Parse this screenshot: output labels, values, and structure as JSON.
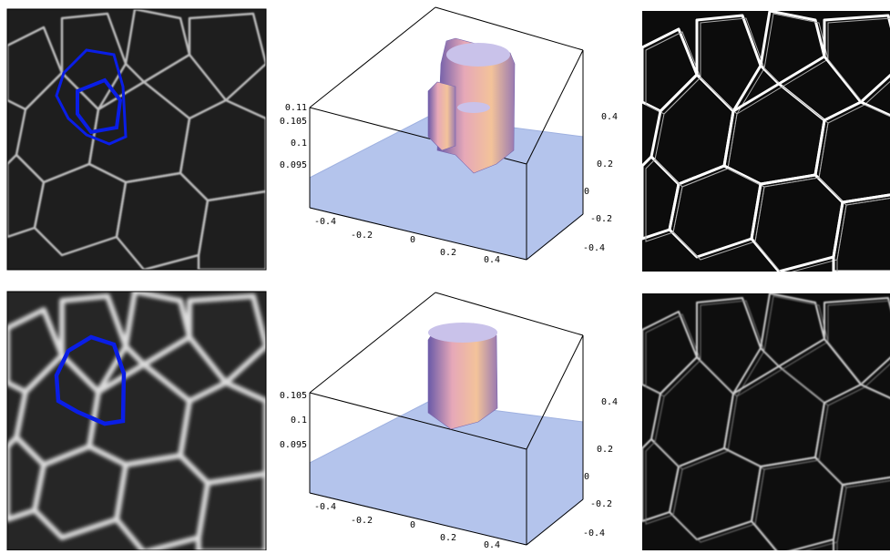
{
  "rows": [
    {
      "surface": {
        "z_ticks": [
          "0.11",
          "0.105",
          "0.1",
          "0.095"
        ],
        "x_ticks": [
          "-0.4",
          "-0.2",
          "0",
          "0.2",
          "0.4"
        ],
        "y_ticks": [
          "0.4",
          "0.2",
          "0",
          "-0.2",
          "-0.4"
        ]
      }
    },
    {
      "surface": {
        "z_ticks": [
          "0.105",
          "0.1",
          "0.095"
        ],
        "x_ticks": [
          "-0.4",
          "-0.2",
          "0",
          "0.2",
          "0.4"
        ],
        "y_ticks": [
          "0.4",
          "0.2",
          "0",
          "-0.2",
          "-0.4"
        ]
      }
    }
  ]
}
